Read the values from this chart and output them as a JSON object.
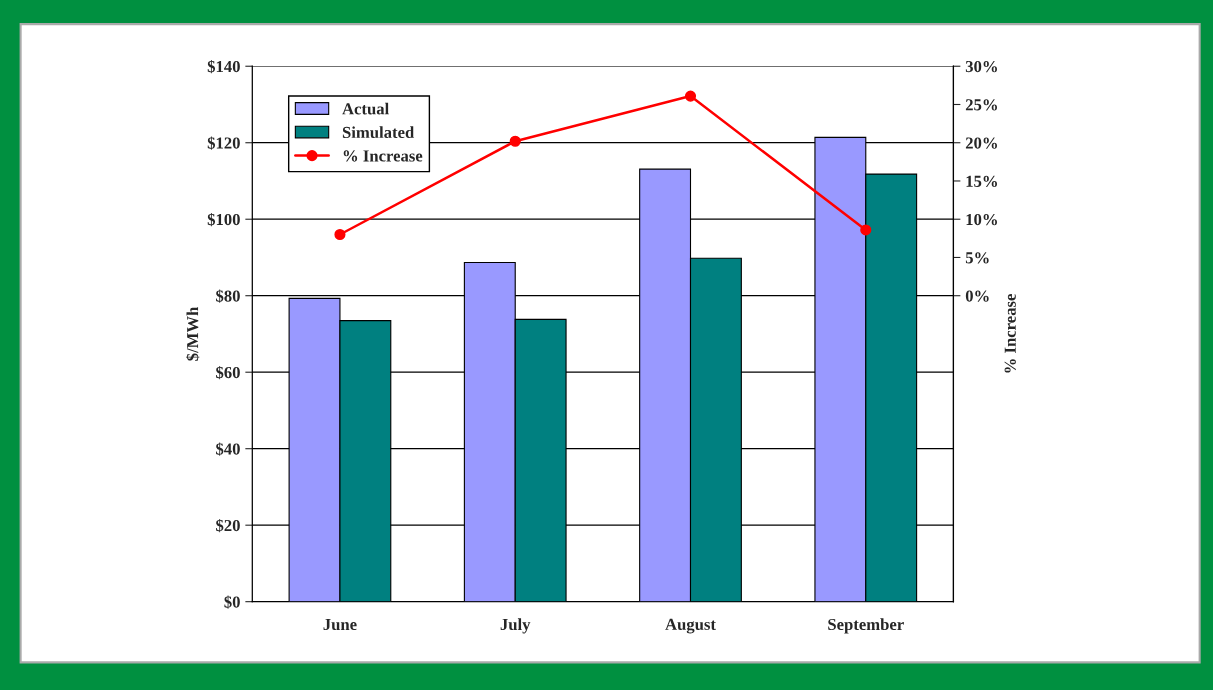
{
  "chart_data": {
    "type": "bar",
    "categories": [
      "June",
      "July",
      "August",
      "September"
    ],
    "ylabel": "$/MWh",
    "y2label": "% Increase",
    "series": [
      {
        "name": "Actual",
        "color": "#9999ff",
        "values": [
          79.3,
          88.7,
          113.1,
          121.4
        ]
      },
      {
        "name": "Simulated",
        "color": "#008080",
        "values": [
          73.5,
          73.8,
          89.8,
          111.8
        ]
      },
      {
        "name": "% Increase",
        "type": "line",
        "axis": "y2",
        "color": "#ff0000",
        "marker": "circle",
        "values": [
          8.0,
          20.2,
          26.1,
          8.6
        ]
      }
    ],
    "ylim": [
      0,
      140
    ],
    "yticks": [
      {
        "value": 0,
        "label": "$0"
      },
      {
        "value": 20,
        "label": "$20"
      },
      {
        "value": 40,
        "label": "$40"
      },
      {
        "value": 60,
        "label": "$60"
      },
      {
        "value": 80,
        "label": "$80"
      },
      {
        "value": 100,
        "label": "$100"
      },
      {
        "value": 120,
        "label": "$120"
      },
      {
        "value": 140,
        "label": "$140"
      }
    ],
    "y2lim": [
      -40,
      30
    ],
    "y2ticks": [
      {
        "value": 0,
        "label": "0%"
      },
      {
        "value": 5,
        "label": "5%"
      },
      {
        "value": 10,
        "label": "10%"
      },
      {
        "value": 15,
        "label": "15%"
      },
      {
        "value": 20,
        "label": "20%"
      },
      {
        "value": 25,
        "label": "25%"
      },
      {
        "value": 30,
        "label": "30%"
      }
    ],
    "grid": "y",
    "legend": "top left"
  }
}
